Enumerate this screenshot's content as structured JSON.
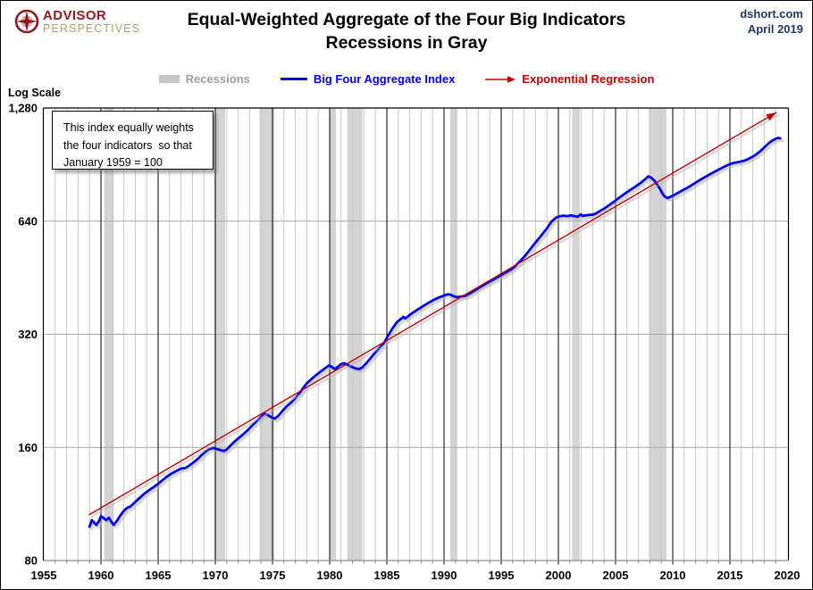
{
  "header": {
    "logo": {
      "line1": "ADVISOR",
      "line2": "PERSPECTIVES"
    },
    "title_line1": "Equal-Weighted Aggregate of the Four Big Indicators",
    "title_line2": "Recessions in Gray",
    "source_line1": "dshort.com",
    "source_line2": "April 2019"
  },
  "legend": {
    "items": [
      {
        "type": "band",
        "label": "Recessions",
        "swatch_color": "#C6C6C6",
        "label_color": "#9E9E9E"
      },
      {
        "type": "line",
        "label": "Big Four Aggregate Index",
        "swatch_color": "#0000EE",
        "label_color": "#0000EE"
      },
      {
        "type": "arrow",
        "label": "Exponential Regression",
        "swatch_color": "#C00000",
        "label_color": "#C00000"
      }
    ]
  },
  "axis_note": "Log Scale",
  "annotation": {
    "lines": [
      "This index equally weights",
      "the four indicators  so that",
      "January 1959 = 100"
    ]
  },
  "chart_data": {
    "type": "line",
    "title": "Equal-Weighted Aggregate of the Four Big Indicators",
    "subtitle": "Recessions in Gray",
    "x_axis": {
      "min": 1955,
      "max": 2020,
      "ticks": [
        1955,
        1960,
        1965,
        1970,
        1975,
        1980,
        1985,
        1990,
        1995,
        2000,
        2005,
        2010,
        2015,
        2020
      ]
    },
    "y_axis": {
      "scale": "log2",
      "min": 80,
      "max": 1280,
      "label": "Log Scale",
      "ticks": [
        {
          "label": "1,280",
          "value": 1280
        },
        {
          "label": "640",
          "value": 640
        },
        {
          "label": "320",
          "value": 320
        },
        {
          "label": "160",
          "value": 160
        },
        {
          "label": "80",
          "value": 80
        }
      ]
    },
    "recessions": [
      [
        1960.29,
        1961.12
      ],
      [
        1969.92,
        1970.87
      ],
      [
        1973.87,
        1975.17
      ],
      [
        1980.04,
        1980.54
      ],
      [
        1981.54,
        1982.87
      ],
      [
        1990.54,
        1991.16
      ],
      [
        2001.2,
        2001.87
      ],
      [
        2007.92,
        2009.45
      ]
    ],
    "series": [
      {
        "name": "Big Four Aggregate Index",
        "color": "#0000EE",
        "width": 2.8,
        "arrow_end": false,
        "points": [
          [
            1959.0,
            98.5
          ],
          [
            1959.2,
            102.5
          ],
          [
            1959.4,
            101
          ],
          [
            1959.6,
            99.5
          ],
          [
            1959.8,
            101.5
          ],
          [
            1960.0,
            105
          ],
          [
            1960.2,
            104
          ],
          [
            1960.45,
            102.5
          ],
          [
            1960.7,
            104
          ],
          [
            1960.9,
            101.5
          ],
          [
            1961.1,
            99.5
          ],
          [
            1961.4,
            102
          ],
          [
            1961.7,
            105.5
          ],
          [
            1962.0,
            108.5
          ],
          [
            1962.3,
            110.5
          ],
          [
            1962.6,
            111.5
          ],
          [
            1963.0,
            114.5
          ],
          [
            1963.4,
            117.5
          ],
          [
            1963.8,
            120.5
          ],
          [
            1964.2,
            123
          ],
          [
            1964.6,
            125.5
          ],
          [
            1965.0,
            128
          ],
          [
            1965.4,
            131
          ],
          [
            1965.8,
            134
          ],
          [
            1966.2,
            136.5
          ],
          [
            1966.6,
            138.5
          ],
          [
            1967.0,
            140.5
          ],
          [
            1967.35,
            141
          ],
          [
            1967.7,
            143
          ],
          [
            1968.1,
            146
          ],
          [
            1968.5,
            149.5
          ],
          [
            1968.9,
            153.5
          ],
          [
            1969.2,
            156.5
          ],
          [
            1969.5,
            158.5
          ],
          [
            1969.8,
            159.5
          ],
          [
            1970.1,
            158.5
          ],
          [
            1970.45,
            157.5
          ],
          [
            1970.75,
            156.5
          ],
          [
            1971.0,
            158
          ],
          [
            1971.3,
            161.5
          ],
          [
            1971.7,
            166
          ],
          [
            1972.1,
            170
          ],
          [
            1972.5,
            174
          ],
          [
            1972.9,
            178.5
          ],
          [
            1973.3,
            184
          ],
          [
            1973.7,
            189
          ],
          [
            1974.0,
            193
          ],
          [
            1974.3,
            197
          ],
          [
            1974.6,
            195
          ],
          [
            1974.9,
            192.5
          ],
          [
            1975.2,
            191
          ],
          [
            1975.5,
            194
          ],
          [
            1975.9,
            200.5
          ],
          [
            1976.3,
            206.5
          ],
          [
            1976.7,
            211.5
          ],
          [
            1977.1,
            218
          ],
          [
            1977.5,
            226
          ],
          [
            1978.0,
            237
          ],
          [
            1978.4,
            243
          ],
          [
            1978.8,
            249
          ],
          [
            1979.2,
            254.5
          ],
          [
            1979.6,
            260
          ],
          [
            1979.95,
            264.5
          ],
          [
            1980.2,
            262
          ],
          [
            1980.45,
            258.5
          ],
          [
            1980.7,
            262
          ],
          [
            1981.0,
            266.5
          ],
          [
            1981.3,
            268
          ],
          [
            1981.6,
            265
          ],
          [
            1981.9,
            262.5
          ],
          [
            1982.2,
            260
          ],
          [
            1982.55,
            258.5
          ],
          [
            1982.85,
            261
          ],
          [
            1983.2,
            268
          ],
          [
            1983.6,
            277
          ],
          [
            1984.0,
            286.5
          ],
          [
            1984.4,
            295
          ],
          [
            1984.8,
            305
          ],
          [
            1985.1,
            317
          ],
          [
            1985.5,
            332
          ],
          [
            1985.9,
            345
          ],
          [
            1986.2,
            351
          ],
          [
            1986.45,
            356
          ],
          [
            1986.6,
            352.5
          ],
          [
            1986.8,
            356
          ],
          [
            1987.2,
            364
          ],
          [
            1987.6,
            370.5
          ],
          [
            1988.0,
            377.5
          ],
          [
            1988.4,
            384
          ],
          [
            1988.8,
            390.5
          ],
          [
            1989.2,
            396.5
          ],
          [
            1989.6,
            401.5
          ],
          [
            1990.0,
            405.5
          ],
          [
            1990.35,
            409
          ],
          [
            1990.6,
            407.5
          ],
          [
            1990.9,
            403.5
          ],
          [
            1991.2,
            401.5
          ],
          [
            1991.5,
            403
          ],
          [
            1991.9,
            405.5
          ],
          [
            1992.3,
            411
          ],
          [
            1992.7,
            418.5
          ],
          [
            1993.1,
            426
          ],
          [
            1993.5,
            433
          ],
          [
            1993.9,
            440
          ],
          [
            1994.3,
            446.5
          ],
          [
            1994.7,
            453.5
          ],
          [
            1995.1,
            461
          ],
          [
            1995.5,
            468
          ],
          [
            1995.9,
            476
          ],
          [
            1996.3,
            488
          ],
          [
            1996.7,
            503
          ],
          [
            1997.1,
            518
          ],
          [
            1997.5,
            537
          ],
          [
            1998.0,
            561
          ],
          [
            1998.5,
            586
          ],
          [
            1999.0,
            612
          ],
          [
            1999.4,
            638
          ],
          [
            1999.8,
            654
          ],
          [
            2000.1,
            659
          ],
          [
            2000.45,
            662
          ],
          [
            2000.8,
            660
          ],
          [
            2001.1,
            663
          ],
          [
            2001.4,
            660
          ],
          [
            2001.7,
            658
          ],
          [
            2001.95,
            667
          ],
          [
            2002.1,
            661
          ],
          [
            2002.4,
            663
          ],
          [
            2002.7,
            665
          ],
          [
            2003.0,
            666
          ],
          [
            2003.3,
            671
          ],
          [
            2003.7,
            683
          ],
          [
            2004.1,
            694
          ],
          [
            2004.5,
            708
          ],
          [
            2004.9,
            722
          ],
          [
            2005.3,
            738
          ],
          [
            2005.7,
            753
          ],
          [
            2006.1,
            768
          ],
          [
            2006.5,
            782
          ],
          [
            2006.9,
            797
          ],
          [
            2007.3,
            813
          ],
          [
            2007.6,
            828
          ],
          [
            2007.85,
            842
          ],
          [
            2008.1,
            836
          ],
          [
            2008.4,
            820
          ],
          [
            2008.65,
            800
          ],
          [
            2008.9,
            778
          ],
          [
            2009.1,
            757
          ],
          [
            2009.3,
            744
          ],
          [
            2009.55,
            737
          ],
          [
            2009.8,
            743
          ],
          [
            2010.1,
            750
          ],
          [
            2010.45,
            761
          ],
          [
            2010.8,
            771
          ],
          [
            2011.2,
            783
          ],
          [
            2011.6,
            796
          ],
          [
            2012.0,
            810
          ],
          [
            2012.4,
            824
          ],
          [
            2012.8,
            838
          ],
          [
            2013.2,
            851
          ],
          [
            2013.6,
            864
          ],
          [
            2014.0,
            877
          ],
          [
            2014.4,
            890
          ],
          [
            2014.8,
            902
          ],
          [
            2015.1,
            910
          ],
          [
            2015.45,
            916
          ],
          [
            2015.8,
            920
          ],
          [
            2016.15,
            925
          ],
          [
            2016.5,
            933
          ],
          [
            2016.9,
            946
          ],
          [
            2017.3,
            963
          ],
          [
            2017.7,
            985
          ],
          [
            2018.1,
            1012
          ],
          [
            2018.45,
            1035
          ],
          [
            2018.75,
            1050
          ],
          [
            2019.0,
            1060
          ],
          [
            2019.2,
            1066
          ],
          [
            2019.4,
            1063
          ]
        ]
      },
      {
        "name": "Exponential Regression",
        "color": "#C00000",
        "width": 1.4,
        "arrow_end": true,
        "points": [
          [
            1959.0,
            106
          ],
          [
            2019.05,
            1245
          ]
        ]
      }
    ],
    "colors": {
      "recession_band": "#D4D4D4",
      "minor_grid": "#C9C9C9",
      "major_grid": "#000000",
      "h_grid": "#A8A8A8",
      "axis": "#8C8C8C",
      "border": "#000000",
      "shadow": "#B0B0B0"
    },
    "legend_position": "top",
    "grid": true
  }
}
